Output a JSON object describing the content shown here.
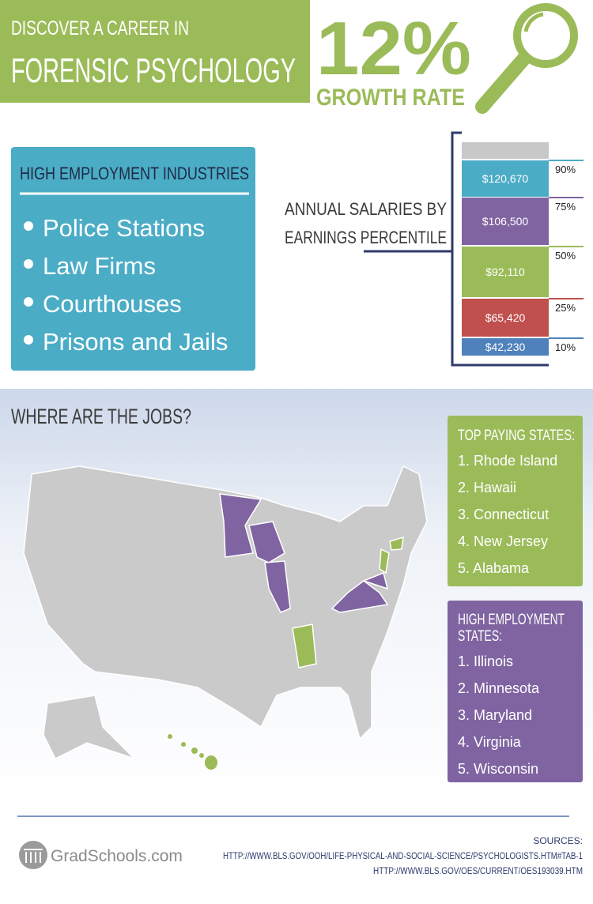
{
  "header": {
    "intro": "DISCOVER A CAREER IN",
    "title": "FORENSIC PSYCHOLOGY"
  },
  "growth": {
    "value": "12%",
    "label": "GROWTH RATE"
  },
  "industries": {
    "title": "HIGH EMPLOYMENT INDUSTRIES",
    "items": [
      "Police Stations",
      "Law Firms",
      "Courthouses",
      "Prisons and Jails"
    ]
  },
  "salaries": {
    "title": [
      "ANNUAL SALARIES BY",
      "EARNINGS PERCENTILE"
    ],
    "rows": [
      {
        "amount": "$120,670",
        "percentile": "90%"
      },
      {
        "amount": "$106,500",
        "percentile": "75%"
      },
      {
        "amount": "$92,110",
        "percentile": "50%"
      },
      {
        "amount": "$65,420",
        "percentile": "25%"
      },
      {
        "amount": "$42,230",
        "percentile": "10%"
      }
    ]
  },
  "jobs": {
    "title": "WHERE ARE THE JOBS?"
  },
  "top_paying": {
    "title": "TOP PAYING STATES:",
    "items": [
      "1. Rhode Island",
      "2. Hawaii",
      "3. Connecticut",
      "4. New Jersey",
      "5. Alabama"
    ]
  },
  "high_employment": {
    "title": [
      "HIGH EMPLOYMENT",
      "STATES:"
    ],
    "items": [
      "1. Illinois",
      "2. Minnesota",
      "3. Maryland",
      "4. Virginia",
      "5. Wisconsin"
    ]
  },
  "logo": "GradSchools.com",
  "sources": {
    "label": "SOURCES:",
    "links": [
      "HTTP://WWW.BLS.GOV/OOH/LIFE-PHYSICAL-AND-SOCIAL-SCIENCE/PSYCHOLOGISTS.HTM#TAB-1",
      "HTTP://WWW.BLS.GOV/OES/CURRENT/OES193039.HTM"
    ]
  }
}
